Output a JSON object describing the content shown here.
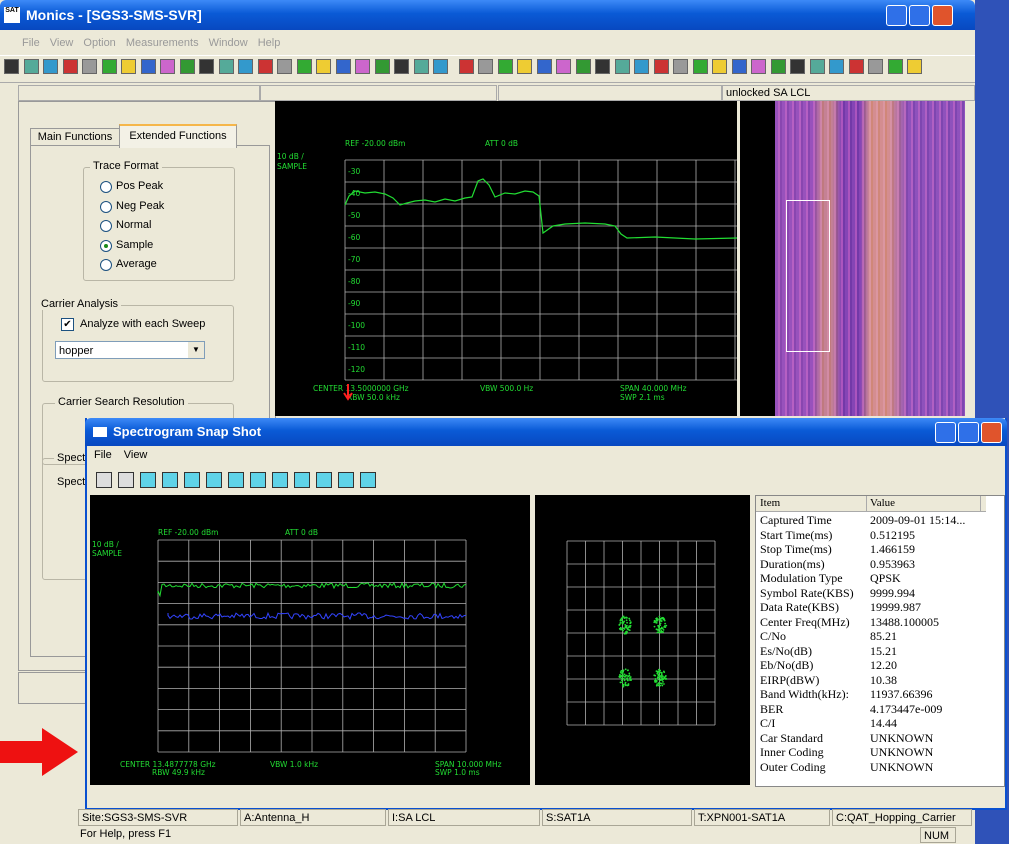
{
  "window": {
    "title": "Monics - [SGS3-SMS-SVR]",
    "menu": [
      "File",
      "View",
      "Option",
      "Measurements",
      "Window",
      "Help"
    ],
    "status_label": "unlocked SA LCL"
  },
  "left_panel": {
    "tabs": [
      "Main Functions",
      "Extended Functions"
    ],
    "trace_format": {
      "title": "Trace Format",
      "options": [
        "Pos Peak",
        "Neg Peak",
        "Normal",
        "Sample",
        "Average"
      ],
      "selected_index": 3
    },
    "carrier_analysis": {
      "title": "Carrier Analysis",
      "checkbox": "Analyze with each Sweep",
      "dropdown": "hopper"
    },
    "carrier_search_resolution": {
      "title": "Carrier Search Resolution"
    },
    "spect_labels": [
      "Spect",
      "Spect"
    ]
  },
  "spectrum": {
    "ref": "REF -20.00 dBm",
    "att": "ATT 0 dB",
    "scale": "10 dB /",
    "mode": "SAMPLE",
    "y_labels": [
      "-30",
      "-40",
      "-50",
      "-60",
      "-70",
      "-80",
      "-90",
      "-100",
      "-110",
      "-120"
    ],
    "center": "CENTER 13.5000000 GHz",
    "rbw": "RBW 50.0 kHz",
    "vbw": "VBW 500.0 Hz",
    "span": "SPAN 40.000 MHz",
    "swp": "SWP 2.1 ms"
  },
  "snapshot": {
    "title": "Spectrogram Snap Shot",
    "menu": [
      "File",
      "View"
    ],
    "plot": {
      "ref": "REF -20.00 dBm",
      "att": "ATT 0 dB",
      "scale": "10 dB /",
      "mode": "SAMPLE",
      "center": "CENTER 13.4877778 GHz",
      "rbw": "RBW 49.9 kHz",
      "vbw": "VBW 1.0 kHz",
      "span": "SPAN 10.000 MHz",
      "swp": "SWP 1.0 ms"
    },
    "table": {
      "header": [
        "Item",
        "Value"
      ],
      "rows": [
        [
          "Captured Time",
          "2009-09-01 15:14..."
        ],
        [
          "Start Time(ms)",
          "0.512195"
        ],
        [
          "Stop Time(ms)",
          "1.466159"
        ],
        [
          "Duration(ms)",
          "0.953963"
        ],
        [
          "Modulation Type",
          "QPSK"
        ],
        [
          "Symbol Rate(KBS)",
          "9999.994"
        ],
        [
          "Data Rate(KBS)",
          "19999.987"
        ],
        [
          "Center Freq(MHz)",
          "13488.100005"
        ],
        [
          "C/No",
          "85.21"
        ],
        [
          "Es/No(dB)",
          "15.21"
        ],
        [
          "Eb/No(dB)",
          "12.20"
        ],
        [
          "EIRP(dBW)",
          "10.38"
        ],
        [
          "Band Width(kHz):",
          "11937.66396"
        ],
        [
          "BER",
          "4.173447e-009"
        ],
        [
          "C/I",
          "14.44"
        ],
        [
          "Car Standard",
          "UNKNOWN"
        ],
        [
          "Inner Coding",
          "UNKNOWN"
        ],
        [
          "Outer Coding",
          "UNKNOWN"
        ]
      ]
    }
  },
  "status": {
    "cells": [
      "Site:SGS3-SMS-SVR",
      "A:Antenna_H",
      "I:SA LCL",
      "S:SAT1A",
      "T:XPN001-SAT1A",
      "C:QAT_Hopping_Carrier"
    ],
    "help": "For Help, press F1",
    "indicator": "NUM"
  }
}
